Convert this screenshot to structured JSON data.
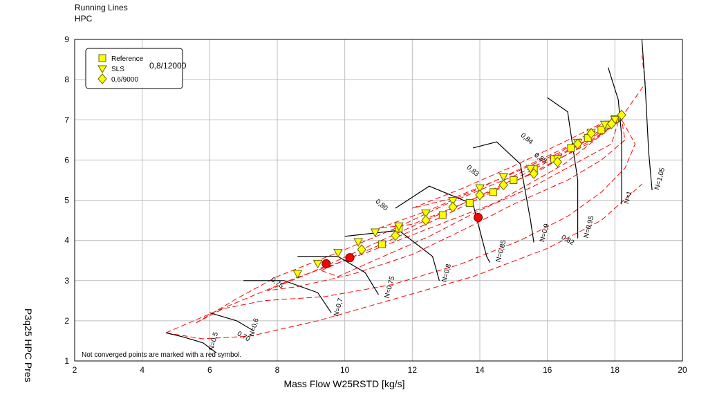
{
  "header": {
    "title": "Running Lines",
    "subtitle": "HPC"
  },
  "chart_data": {
    "type": "scatter",
    "title": "Running Lines",
    "subtitle": "HPC",
    "xlabel": "Mass Flow W25RSTD [kg/s]",
    "ylabel": "P3q25   HPC Pres",
    "xlim": [
      2,
      20
    ],
    "ylim": [
      1,
      9
    ],
    "x_ticks": [
      2,
      4,
      6,
      8,
      10,
      12,
      14,
      16,
      18,
      20
    ],
    "y_ticks": [
      1,
      2,
      3,
      4,
      5,
      6,
      7,
      8,
      9
    ],
    "grid": true,
    "legend_position": "top-left",
    "legend_annotation": "0,8/12000",
    "note": "Not converged points are marked with a red symbol.",
    "colors": {
      "speed_lines": "#000000",
      "efficiency": "#ff0000",
      "markers": "#ffff00",
      "not_converged": "#ff0000"
    },
    "series": [
      {
        "name": "Reference",
        "marker": "square",
        "x": [
          11.1,
          11.6,
          12.9,
          13.7,
          14.4,
          15.0,
          15.6,
          16.2,
          16.7,
          17.2,
          17.6,
          17.8,
          18.0
        ],
        "y": [
          3.9,
          4.3,
          4.63,
          4.93,
          5.2,
          5.5,
          5.78,
          6.03,
          6.3,
          6.55,
          6.75,
          6.88,
          7.02
        ]
      },
      {
        "name": "SLS",
        "marker": "triangle-down",
        "x": [
          8.6,
          9.2,
          9.8,
          10.4,
          10.9,
          11.6,
          12.4,
          13.2,
          14.0,
          14.7,
          15.5,
          16.3,
          16.9,
          17.3,
          17.7,
          18.0
        ],
        "y": [
          3.17,
          3.42,
          3.69,
          3.96,
          4.2,
          4.35,
          4.67,
          4.98,
          5.3,
          5.58,
          5.78,
          6.03,
          6.43,
          6.68,
          6.88,
          7.0
        ]
      },
      {
        "name": "0,6/9000",
        "marker": "diamond",
        "x": [
          10.5,
          11.5,
          12.4,
          13.2,
          14.0,
          14.7,
          15.6,
          16.3,
          16.9,
          17.3,
          17.9,
          18.2
        ],
        "y": [
          3.77,
          4.12,
          4.5,
          4.83,
          5.13,
          5.38,
          5.66,
          5.95,
          6.4,
          6.66,
          6.9,
          7.12
        ]
      },
      {
        "name": "",
        "marker": "circle",
        "color": "#ff0000",
        "x": [
          9.45,
          10.15,
          13.95
        ],
        "y": [
          3.42,
          3.57,
          4.57
        ]
      }
    ],
    "speed_line_labels": [
      "N=0,5",
      "N=0,6",
      "N=0,7",
      "N=0,75",
      "N=0,8",
      "N=0,85",
      "N=0,9",
      "N=0,95",
      "N=1",
      "N=1,05"
    ],
    "efficiency_labels": [
      "0,70",
      "0,75",
      "0,80",
      "0,82",
      "0,83",
      "0,84",
      "0,85"
    ]
  }
}
